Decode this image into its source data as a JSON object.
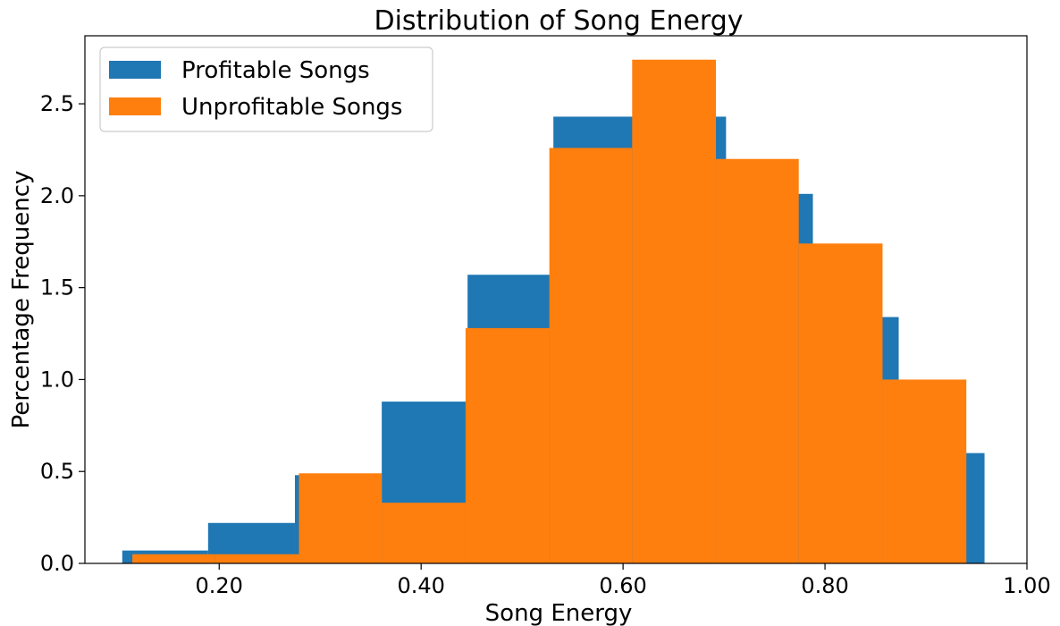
{
  "chart_data": {
    "type": "histogram",
    "title": "Distribution of Song Energy",
    "xlabel": "Song Energy",
    "ylabel": "Percentage Frequency",
    "xlim": [
      0.067,
      1.0
    ],
    "ylim": [
      0.0,
      2.87
    ],
    "xticks": [
      0.2,
      0.4,
      0.6,
      0.8,
      1.0
    ],
    "xtick_labels": [
      "0.20",
      "0.40",
      "0.60",
      "0.80",
      "1.00"
    ],
    "yticks": [
      0.0,
      0.5,
      1.0,
      1.5,
      2.0,
      2.5
    ],
    "ytick_labels": [
      "0.0",
      "0.5",
      "1.0",
      "1.5",
      "2.0",
      "2.5"
    ],
    "grid": false,
    "legend_position": "top-left",
    "series": [
      {
        "name": "Profitable Songs",
        "color": "#1f77b4",
        "bins": [
          {
            "x0": 0.104,
            "x1": 0.189,
            "value": 0.07
          },
          {
            "x0": 0.189,
            "x1": 0.275,
            "value": 0.22
          },
          {
            "x0": 0.275,
            "x1": 0.361,
            "value": 0.48
          },
          {
            "x0": 0.361,
            "x1": 0.446,
            "value": 0.88
          },
          {
            "x0": 0.446,
            "x1": 0.531,
            "value": 1.57
          },
          {
            "x0": 0.531,
            "x1": 0.617,
            "value": 2.43
          },
          {
            "x0": 0.617,
            "x1": 0.702,
            "value": 2.43
          },
          {
            "x0": 0.702,
            "x1": 0.788,
            "value": 2.01
          },
          {
            "x0": 0.788,
            "x1": 0.873,
            "value": 1.34
          },
          {
            "x0": 0.873,
            "x1": 0.958,
            "value": 0.6
          }
        ]
      },
      {
        "name": "Unprofitable Songs",
        "color": "#ff7f0e",
        "bins": [
          {
            "x0": 0.114,
            "x1": 0.196,
            "value": 0.05
          },
          {
            "x0": 0.196,
            "x1": 0.279,
            "value": 0.05
          },
          {
            "x0": 0.279,
            "x1": 0.361,
            "value": 0.49
          },
          {
            "x0": 0.361,
            "x1": 0.444,
            "value": 0.33
          },
          {
            "x0": 0.444,
            "x1": 0.527,
            "value": 1.28
          },
          {
            "x0": 0.527,
            "x1": 0.609,
            "value": 2.26
          },
          {
            "x0": 0.609,
            "x1": 0.692,
            "value": 2.74
          },
          {
            "x0": 0.692,
            "x1": 0.774,
            "value": 2.2
          },
          {
            "x0": 0.774,
            "x1": 0.857,
            "value": 1.74
          },
          {
            "x0": 0.857,
            "x1": 0.94,
            "value": 1.0
          }
        ]
      }
    ]
  }
}
